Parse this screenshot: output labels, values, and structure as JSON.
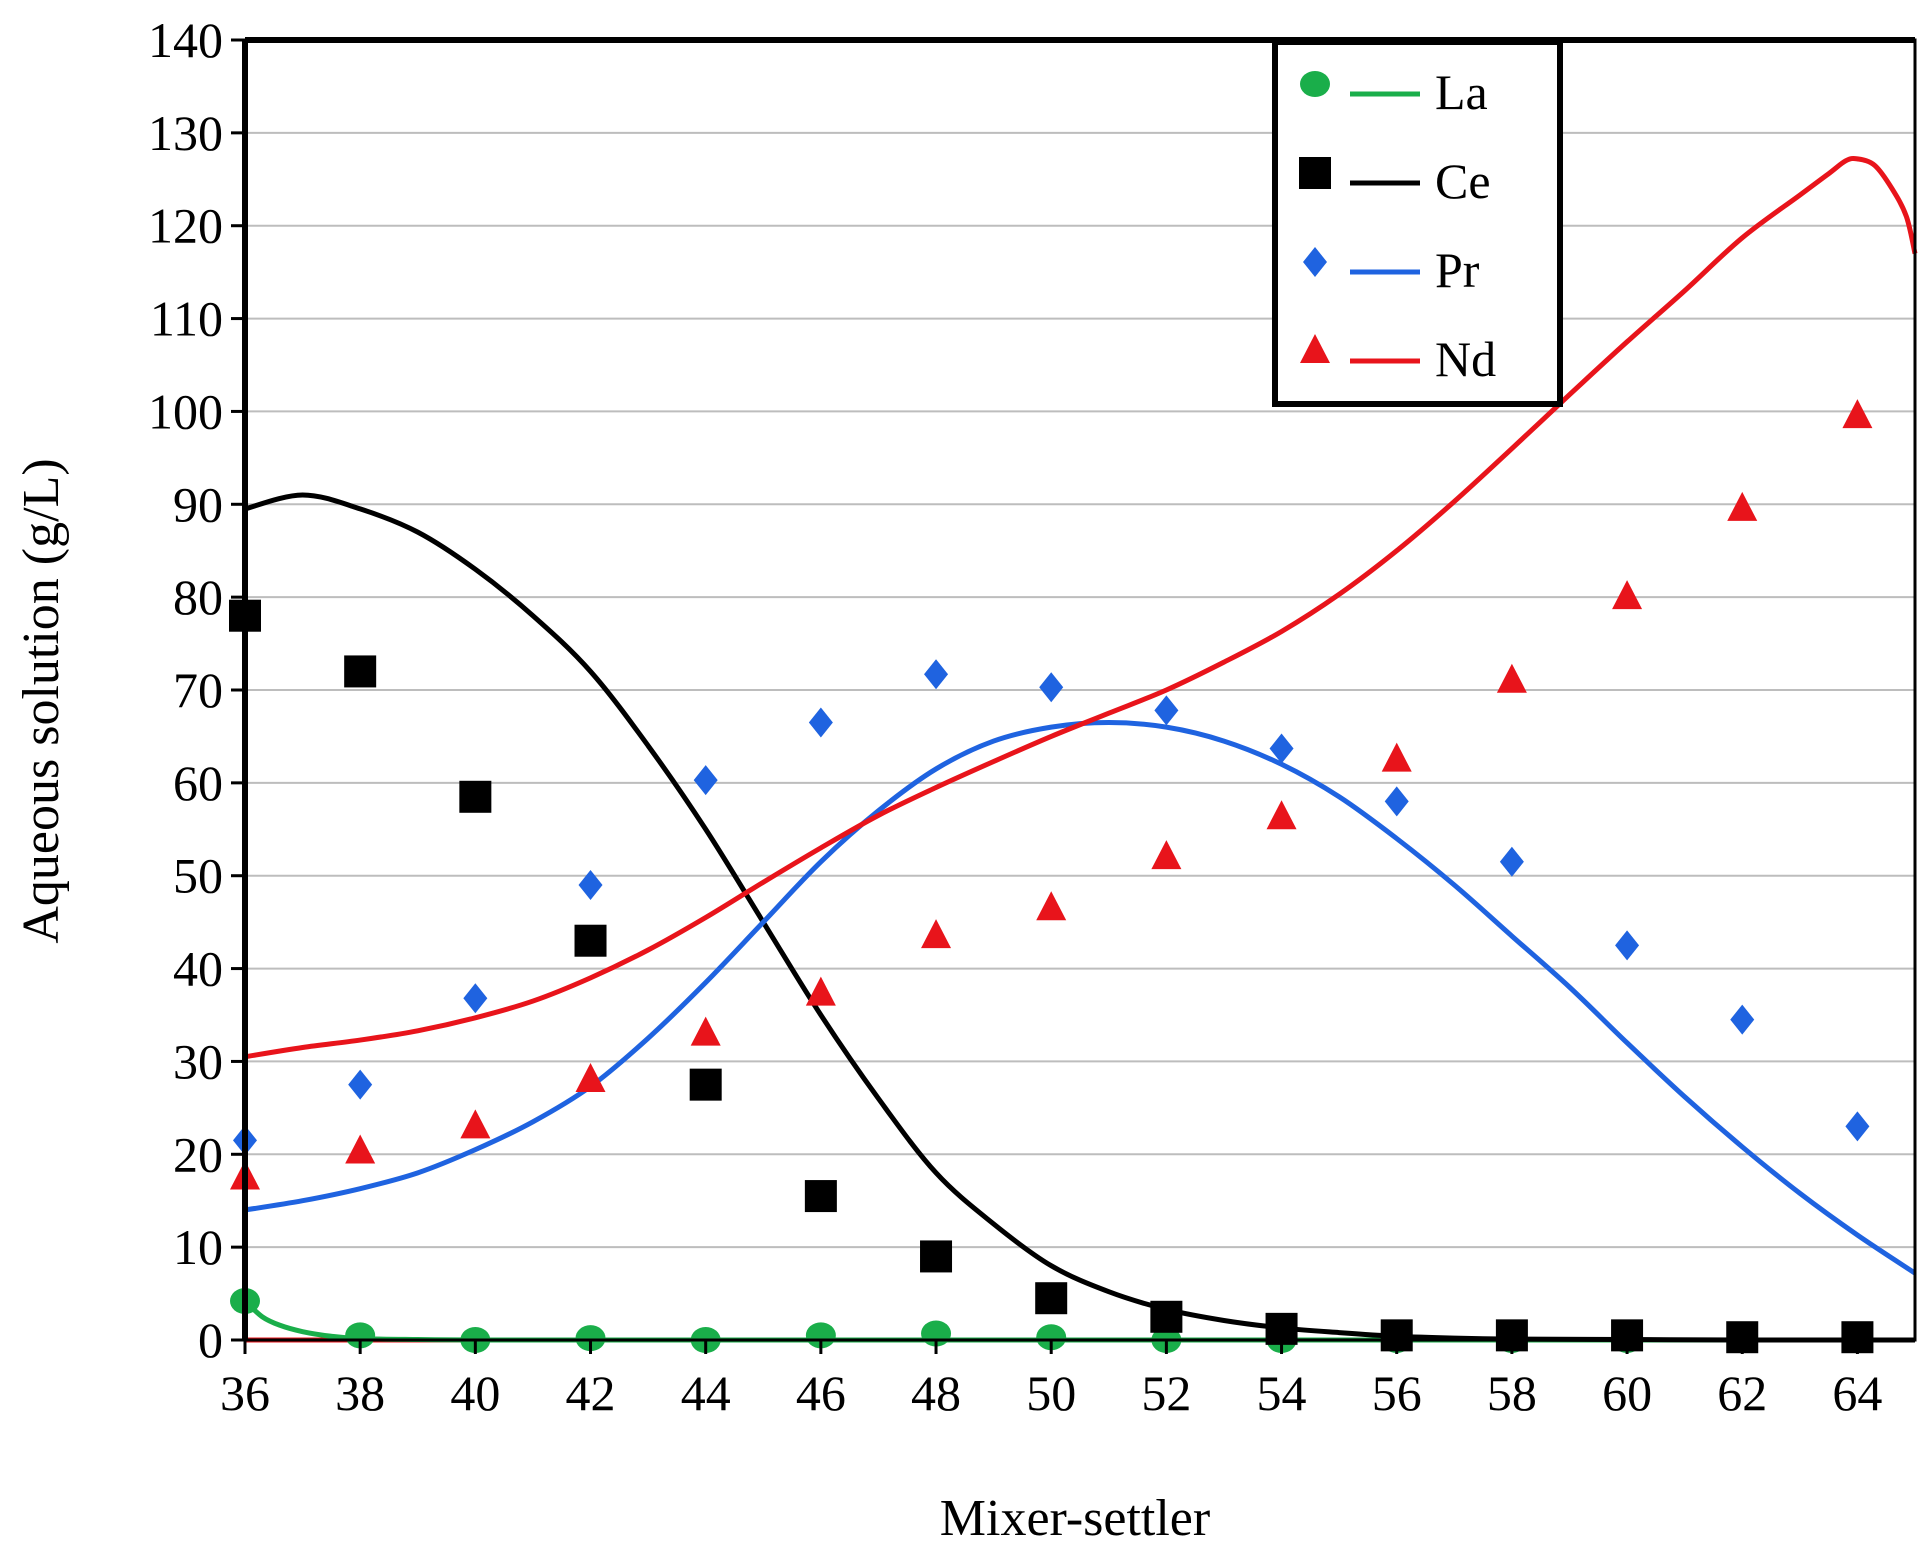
{
  "chart_data": {
    "type": "scatter",
    "title": "",
    "xlabel": "Mixer-settler",
    "ylabel": "Aqueous solution (g/L)",
    "xlim": [
      36,
      65
    ],
    "ylim": [
      0,
      140
    ],
    "xticks": [
      36,
      38,
      40,
      42,
      44,
      46,
      48,
      50,
      52,
      54,
      56,
      58,
      60,
      62,
      64
    ],
    "yticks": [
      0,
      10,
      20,
      30,
      40,
      50,
      60,
      70,
      80,
      90,
      100,
      110,
      120,
      130,
      140
    ],
    "grid": "horizontal",
    "legend_position": "top-right",
    "series": [
      {
        "name": "La",
        "label": "La",
        "color": "#1aae4a",
        "marker": "circle",
        "points": {
          "x": [
            36,
            38,
            40,
            42,
            44,
            46,
            48,
            50,
            52,
            54,
            56,
            58,
            60,
            62,
            64
          ],
          "y": [
            4.2,
            0.5,
            0,
            0.2,
            0,
            0.5,
            0.7,
            0.3,
            0,
            0,
            0,
            0,
            0,
            0,
            0
          ]
        },
        "curve": {
          "x": [
            36,
            36.3,
            36.6,
            37,
            37.5,
            38,
            39,
            40,
            42,
            44,
            46,
            48,
            50,
            52,
            54,
            56,
            58,
            60,
            62,
            64,
            65
          ],
          "y": [
            4.2,
            2.5,
            1.6,
            0.9,
            0.4,
            0.15,
            0.05,
            0,
            0,
            0,
            0,
            0,
            0,
            0,
            0,
            0,
            0,
            0,
            0,
            0,
            0
          ]
        }
      },
      {
        "name": "Ce",
        "label": "Ce",
        "color": "#000000",
        "marker": "square",
        "points": {
          "x": [
            36,
            38,
            40,
            42,
            44,
            46,
            48,
            50,
            52,
            54,
            56,
            58,
            60,
            62,
            64
          ],
          "y": [
            78,
            72,
            58.5,
            43,
            27.5,
            15.5,
            9,
            4.5,
            2.5,
            1.2,
            0.5,
            0.5,
            0.5,
            0.3,
            0.3
          ]
        },
        "curve": {
          "x": [
            36,
            37,
            38,
            39,
            40,
            41,
            42,
            43,
            44,
            45,
            46,
            47,
            48,
            49,
            50,
            51,
            52,
            53,
            54,
            55,
            56,
            57,
            58,
            60,
            62,
            64,
            65
          ],
          "y": [
            89.5,
            91,
            89.5,
            87,
            83,
            78,
            72,
            64,
            55,
            45,
            35,
            26,
            18,
            12.5,
            8,
            5.2,
            3.3,
            2.1,
            1.3,
            0.8,
            0.4,
            0.2,
            0.1,
            0.05,
            0,
            0,
            0
          ]
        }
      },
      {
        "name": "Pr",
        "label": "Pr",
        "color": "#1f63e0",
        "marker": "diamond",
        "points": {
          "x": [
            36,
            38,
            40,
            42,
            44,
            46,
            48,
            50,
            52,
            54,
            56,
            58,
            60,
            62,
            64
          ],
          "y": [
            21.5,
            27.5,
            36.8,
            49,
            60.3,
            66.5,
            71.7,
            70.3,
            67.8,
            63.7,
            58,
            51.5,
            42.5,
            34.5,
            23
          ]
        },
        "curve": {
          "x": [
            36,
            37,
            38,
            39,
            40,
            41,
            42,
            43,
            44,
            45,
            46,
            47,
            48,
            49,
            50,
            51,
            52,
            53,
            54,
            55,
            56,
            57,
            58,
            59,
            60,
            61,
            62,
            63,
            64,
            65
          ],
          "y": [
            14,
            15,
            16.3,
            18,
            20.5,
            23.5,
            27.3,
            32.5,
            38.5,
            45,
            51.5,
            57,
            61.5,
            64.5,
            66,
            66.5,
            66,
            64.5,
            62,
            58.5,
            54,
            49,
            43.5,
            38,
            32,
            26.2,
            20.8,
            15.8,
            11.3,
            7.2
          ]
        }
      },
      {
        "name": "Nd",
        "label": "Nd",
        "color": "#e8141b",
        "marker": "triangle",
        "points": {
          "x": [
            36,
            38,
            40,
            42,
            44,
            46,
            48,
            50,
            52,
            54,
            56,
            58,
            60,
            62,
            64
          ],
          "y": [
            17.5,
            20.3,
            23,
            28,
            33,
            37.3,
            43.5,
            46.5,
            52,
            56.3,
            62.5,
            71,
            80,
            89.5,
            99.5
          ]
        },
        "curve": {
          "x": [
            36,
            37,
            38,
            39,
            40,
            41,
            42,
            43,
            44,
            45,
            46,
            47,
            48,
            49,
            50,
            51,
            52,
            53,
            54,
            55,
            56,
            57,
            58,
            59,
            60,
            61,
            62,
            63,
            63.5,
            63.8,
            64,
            64.3,
            64.6,
            64.85,
            65
          ],
          "y": [
            30.5,
            31.5,
            32.3,
            33.3,
            34.7,
            36.5,
            39,
            42,
            45.5,
            49.3,
            53,
            56.5,
            59.5,
            62.3,
            65,
            67.5,
            70,
            73,
            76.3,
            80.3,
            85,
            90.3,
            96,
            101.8,
            107.5,
            113,
            118.7,
            123.3,
            125.6,
            127,
            127.2,
            126.5,
            124,
            121,
            117
          ]
        },
        "baseline": {
          "x": [
            36,
            65
          ],
          "y": [
            0,
            0
          ]
        }
      }
    ]
  }
}
